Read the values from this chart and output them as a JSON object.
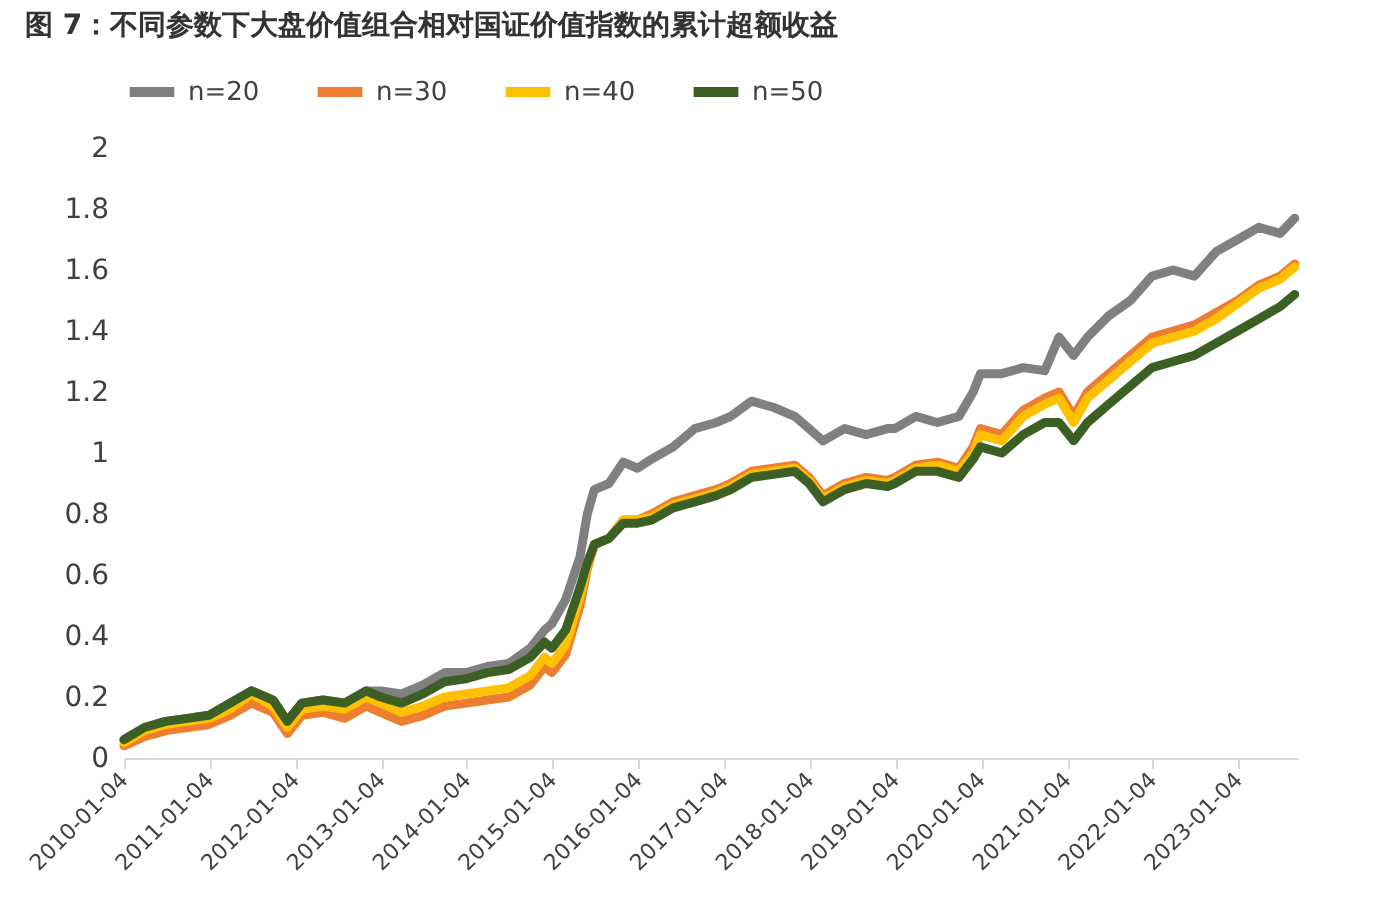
{
  "chart_data": {
    "type": "line",
    "title": "图 7：不同参数下大盘价值组合相对国证价值指数的累计超额收益",
    "x": [
      "2010-01-04",
      "2010-04-01",
      "2010-07-01",
      "2010-10-01",
      "2011-01-01",
      "2011-04-01",
      "2011-07-01",
      "2011-10-01",
      "2011-12-01",
      "2012-02-01",
      "2012-05-01",
      "2012-08-01",
      "2012-11-01",
      "2013-01-01",
      "2013-04-01",
      "2013-07-01",
      "2013-10-01",
      "2014-01-01",
      "2014-04-01",
      "2014-07-01",
      "2014-10-01",
      "2014-12-01",
      "2015-01-01",
      "2015-03-01",
      "2015-05-01",
      "2015-06-01",
      "2015-07-01",
      "2015-09-01",
      "2015-11-01",
      "2016-01-01",
      "2016-03-01",
      "2016-06-01",
      "2016-09-01",
      "2016-12-01",
      "2017-02-01",
      "2017-05-01",
      "2017-08-01",
      "2017-11-01",
      "2018-01-01",
      "2018-03-01",
      "2018-06-01",
      "2018-09-01",
      "2018-12-01",
      "2019-01-01",
      "2019-04-01",
      "2019-07-01",
      "2019-10-01",
      "2019-12-01",
      "2020-01-01",
      "2020-04-01",
      "2020-07-01",
      "2020-10-01",
      "2020-12-01",
      "2021-02-01",
      "2021-04-01",
      "2021-07-01",
      "2021-10-01",
      "2022-01-01",
      "2022-04-01",
      "2022-07-01",
      "2022-10-01",
      "2023-01-01",
      "2023-04-01",
      "2023-07-01",
      "2023-09-01"
    ],
    "series": [
      {
        "name": "n=20",
        "color": "#808080",
        "values": [
          0.06,
          0.1,
          0.12,
          0.13,
          0.14,
          0.18,
          0.22,
          0.19,
          0.12,
          0.18,
          0.19,
          0.18,
          0.22,
          0.22,
          0.21,
          0.24,
          0.28,
          0.28,
          0.3,
          0.31,
          0.36,
          0.42,
          0.44,
          0.52,
          0.66,
          0.8,
          0.88,
          0.9,
          0.97,
          0.95,
          0.98,
          1.02,
          1.08,
          1.1,
          1.12,
          1.17,
          1.15,
          1.12,
          1.08,
          1.04,
          1.08,
          1.06,
          1.08,
          1.08,
          1.12,
          1.1,
          1.12,
          1.2,
          1.26,
          1.26,
          1.28,
          1.27,
          1.38,
          1.32,
          1.38,
          1.45,
          1.5,
          1.58,
          1.6,
          1.58,
          1.66,
          1.7,
          1.74,
          1.72,
          1.77
        ]
      },
      {
        "name": "n=30",
        "color": "#ed7d31",
        "values": [
          0.04,
          0.07,
          0.09,
          0.1,
          0.11,
          0.14,
          0.18,
          0.15,
          0.08,
          0.14,
          0.15,
          0.13,
          0.17,
          0.15,
          0.12,
          0.14,
          0.17,
          0.18,
          0.19,
          0.2,
          0.24,
          0.3,
          0.28,
          0.34,
          0.5,
          0.62,
          0.7,
          0.72,
          0.78,
          0.78,
          0.8,
          0.84,
          0.86,
          0.88,
          0.9,
          0.94,
          0.95,
          0.96,
          0.92,
          0.86,
          0.9,
          0.92,
          0.91,
          0.92,
          0.96,
          0.97,
          0.95,
          1.02,
          1.08,
          1.06,
          1.14,
          1.18,
          1.2,
          1.12,
          1.2,
          1.26,
          1.32,
          1.38,
          1.4,
          1.42,
          1.46,
          1.5,
          1.55,
          1.58,
          1.62
        ]
      },
      {
        "name": "n=40",
        "color": "#ffc000",
        "values": [
          0.05,
          0.09,
          0.11,
          0.12,
          0.13,
          0.16,
          0.21,
          0.17,
          0.1,
          0.16,
          0.17,
          0.16,
          0.2,
          0.18,
          0.15,
          0.17,
          0.2,
          0.21,
          0.22,
          0.23,
          0.27,
          0.33,
          0.31,
          0.37,
          0.53,
          0.63,
          0.7,
          0.72,
          0.78,
          0.78,
          0.79,
          0.83,
          0.85,
          0.87,
          0.89,
          0.93,
          0.94,
          0.95,
          0.91,
          0.85,
          0.89,
          0.91,
          0.9,
          0.91,
          0.95,
          0.96,
          0.94,
          1.0,
          1.06,
          1.04,
          1.12,
          1.16,
          1.18,
          1.1,
          1.18,
          1.24,
          1.3,
          1.36,
          1.38,
          1.4,
          1.44,
          1.49,
          1.54,
          1.57,
          1.61
        ]
      },
      {
        "name": "n=50",
        "color": "#3c5f24",
        "values": [
          0.06,
          0.1,
          0.12,
          0.13,
          0.14,
          0.18,
          0.22,
          0.19,
          0.12,
          0.18,
          0.19,
          0.18,
          0.22,
          0.2,
          0.18,
          0.21,
          0.25,
          0.26,
          0.28,
          0.29,
          0.33,
          0.38,
          0.36,
          0.42,
          0.56,
          0.64,
          0.7,
          0.72,
          0.77,
          0.77,
          0.78,
          0.82,
          0.84,
          0.86,
          0.88,
          0.92,
          0.93,
          0.94,
          0.9,
          0.84,
          0.88,
          0.9,
          0.89,
          0.9,
          0.94,
          0.94,
          0.92,
          0.98,
          1.02,
          1.0,
          1.06,
          1.1,
          1.1,
          1.04,
          1.1,
          1.16,
          1.22,
          1.28,
          1.3,
          1.32,
          1.36,
          1.4,
          1.44,
          1.48,
          1.52
        ]
      }
    ],
    "xlim": [
      "2010-01-04",
      "2023-09-15"
    ],
    "xticks": [
      "2010-01-04",
      "2011-01-04",
      "2012-01-04",
      "2013-01-04",
      "2014-01-04",
      "2015-01-04",
      "2016-01-04",
      "2017-01-04",
      "2018-01-04",
      "2019-01-04",
      "2020-01-04",
      "2021-01-04",
      "2022-01-04",
      "2023-01-04"
    ],
    "ylim": [
      0,
      2
    ],
    "yticks": [
      0,
      0.2,
      0.4,
      0.6,
      0.8,
      1,
      1.2,
      1.4,
      1.6,
      1.8,
      2
    ],
    "grid": false,
    "legend": "top",
    "line_style": "solid",
    "marker": "none"
  }
}
